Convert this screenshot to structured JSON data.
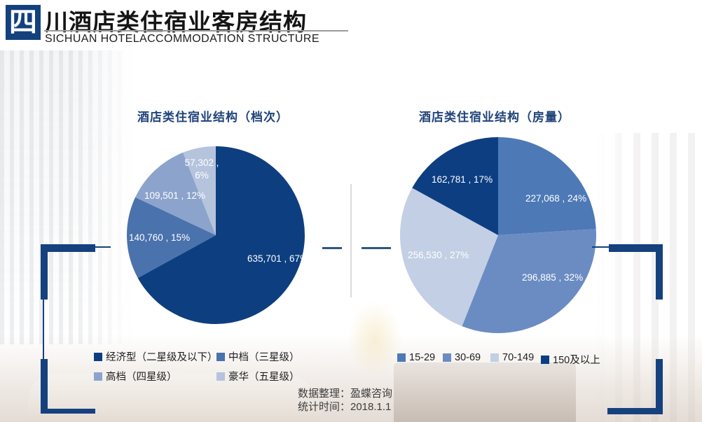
{
  "page": {
    "logo_glyph": "四",
    "title": "川酒店类住宿业客房结构",
    "subtitle": "SICHUAN HOTELACCOMMODATION STRUCTURE",
    "footer": {
      "source_line": "数据整理：盈蝶咨询",
      "time_line": "统计时间：2018.1.1"
    }
  },
  "colors": {
    "brand_navy": "#12417e",
    "chart_title_blue": "#1f4379",
    "divider_gray": "#d9d9d9",
    "dash_blue": "#30567d"
  },
  "chart_data": [
    {
      "type": "pie",
      "title": "酒店类住宿业结构（档次）",
      "start_angle_deg": 0,
      "direction": "clockwise",
      "legend_position": "bottom",
      "slices": [
        {
          "name": "经济型（二星级及以下）",
          "value": 635701,
          "pct": 67,
          "label": "635,701 , 67%",
          "color": "#0d3f80"
        },
        {
          "name": "中档（三星级）",
          "value": 140760,
          "pct": 15,
          "label": "140,760 , 15%",
          "color": "#4a72ac"
        },
        {
          "name": "高档（四星级）",
          "value": 109501,
          "pct": 12,
          "label": "109,501 , 12%",
          "color": "#8ca4cc"
        },
        {
          "name": "豪华（五星级）",
          "value": 57302,
          "pct": 6,
          "label": "57,302 , 6%",
          "color": "#b6c3dd"
        }
      ]
    },
    {
      "type": "pie",
      "title": "酒店类住宿业结构（房量）",
      "start_angle_deg": 0,
      "direction": "clockwise",
      "legend_position": "bottom",
      "slices": [
        {
          "name": "15-29",
          "value": 227068,
          "pct": 24,
          "label": "227,068 , 24%",
          "color": "#4d79b6"
        },
        {
          "name": "30-69",
          "value": 296885,
          "pct": 32,
          "label": "296,885 , 32%",
          "color": "#6b8cc2"
        },
        {
          "name": "70-149",
          "value": 256530,
          "pct": 27,
          "label": "256,530 , 27%",
          "color": "#c3cfe4"
        },
        {
          "name": "150及以上",
          "value": 162781,
          "pct": 17,
          "label": "162,781 , 17%",
          "color": "#0d3e81"
        }
      ]
    }
  ]
}
